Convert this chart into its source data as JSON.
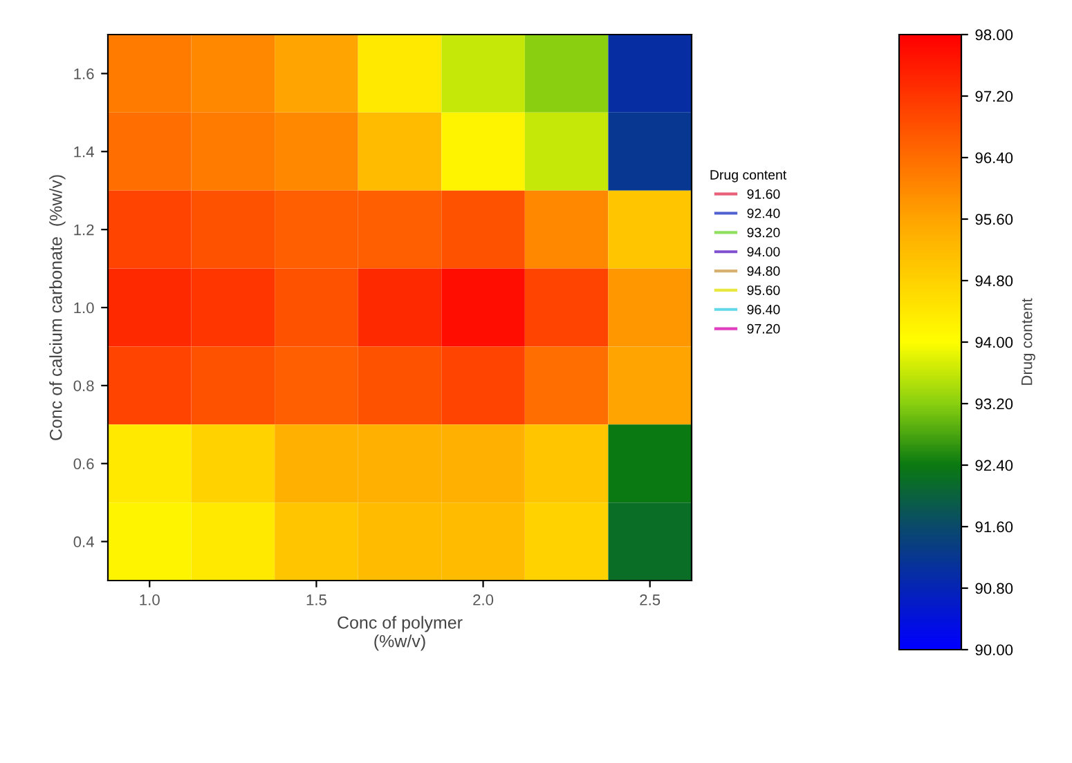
{
  "chart_data": {
    "type": "heatmap",
    "xlabel": "Conc of polymer\n(%w/v)",
    "ylabel": "Conc of calcium carbonate  (%w/v)",
    "clabel": "Drug content",
    "legend_title": "Drug content",
    "categories": [
      "1.0",
      null,
      "1.5",
      null,
      "2.0",
      null,
      "2.5"
    ],
    "y_categories": [
      "1.6",
      "1.4",
      "1.2",
      "1.0",
      "0.8",
      "0.6",
      "0.4"
    ],
    "cells": [
      [
        96.2,
        96.0,
        95.6,
        94.4,
        93.6,
        93.2,
        91.0
      ],
      [
        96.4,
        96.2,
        96.0,
        95.2,
        94.2,
        93.6,
        91.2
      ],
      [
        97.0,
        96.8,
        96.6,
        96.6,
        96.8,
        96.0,
        95.0
      ],
      [
        97.4,
        97.2,
        96.8,
        97.4,
        97.8,
        97.0,
        95.8
      ],
      [
        97.0,
        96.8,
        96.6,
        96.8,
        97.0,
        96.4,
        95.6
      ],
      [
        94.4,
        94.8,
        95.4,
        95.4,
        95.4,
        95.0,
        92.4
      ],
      [
        94.2,
        94.4,
        95.0,
        95.2,
        95.2,
        94.8,
        92.2
      ]
    ],
    "clim": [
      90,
      98
    ],
    "cticks": [
      {
        "value": 90,
        "label": "90.00"
      },
      {
        "value": 90.8,
        "label": "90.80"
      },
      {
        "value": 91.6,
        "label": "91.60"
      },
      {
        "value": 92.4,
        "label": "92.40"
      },
      {
        "value": 93.2,
        "label": "93.20"
      },
      {
        "value": 94,
        "label": "94.00"
      },
      {
        "value": 94.8,
        "label": "94.80"
      },
      {
        "value": 95.6,
        "label": "95.60"
      },
      {
        "value": 96.4,
        "label": "96.40"
      },
      {
        "value": 97.2,
        "label": "97.20"
      },
      {
        "value": 98,
        "label": "98.00"
      }
    ],
    "annotations": [
      "91.60",
      "92.40",
      "93.20",
      "94.00",
      "94.80",
      "95.60",
      "96.40",
      "97.20"
    ]
  }
}
